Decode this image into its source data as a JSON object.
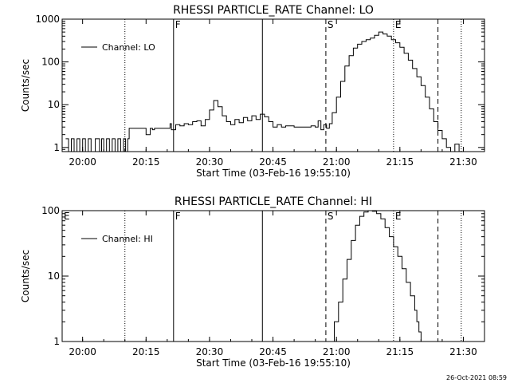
{
  "footer": {
    "timestamp": "26-Oct-2021 08:59"
  },
  "chart_data": [
    {
      "type": "line",
      "title": "RHESSI PARTICLE_RATE Channel: LO",
      "xlabel": "Start Time (03-Feb-16 19:55:10)",
      "ylabel": "Counts/sec",
      "scale_y": "log",
      "xlim": [
        "19:55:10",
        "21:35:00"
      ],
      "ylim": [
        0.8,
        1000
      ],
      "xticks": [
        "20:00",
        "20:15",
        "20:30",
        "20:45",
        "21:00",
        "21:15",
        "21:30"
      ],
      "yticks": [
        "1",
        "10",
        "100",
        "1000"
      ],
      "legend": {
        "placement": "top-left",
        "entries": [
          "Channel: LO"
        ]
      },
      "markers": [
        {
          "time": "20:21:30",
          "style": "solid",
          "label": "F"
        },
        {
          "time": "20:42:30",
          "style": "solid",
          "label": ""
        },
        {
          "time": "20:57:30",
          "style": "dashed",
          "label": "S"
        },
        {
          "time": "21:24:00",
          "style": "dashed",
          "label": ""
        },
        {
          "time": "20:10:00",
          "style": "dotted",
          "label": ""
        },
        {
          "time": "21:13:30",
          "style": "dotted",
          "label": "E"
        },
        {
          "time": "21:29:30",
          "style": "dotted",
          "label": ""
        }
      ],
      "series": [
        {
          "name": "Channel: LO",
          "x": [
            "19:56:00",
            "19:56:40",
            "19:57:20",
            "19:58:00",
            "19:58:40",
            "19:59:20",
            "20:00:00",
            "20:00:40",
            "20:01:20",
            "20:02:00",
            "20:03:00",
            "20:04:00",
            "20:04:30",
            "20:05:00",
            "20:05:40",
            "20:06:20",
            "20:07:00",
            "20:07:40",
            "20:08:20",
            "20:09:00",
            "20:09:40",
            "20:10:10",
            "20:10:40",
            "20:11:00",
            "20:12:00",
            "20:14:00",
            "20:15:00",
            "20:16:00",
            "20:16:30",
            "20:17:00",
            "20:18:00",
            "20:20:00",
            "20:20:40",
            "20:21:00",
            "20:22:00",
            "20:23:00",
            "20:24:00",
            "20:25:00",
            "20:26:00",
            "20:27:00",
            "20:28:00",
            "20:29:00",
            "20:30:00",
            "20:31:00",
            "20:32:00",
            "20:33:00",
            "20:34:00",
            "20:35:00",
            "20:36:00",
            "20:37:00",
            "20:38:00",
            "20:39:00",
            "20:40:00",
            "20:41:00",
            "20:42:00",
            "20:43:00",
            "20:44:00",
            "20:45:00",
            "20:46:00",
            "20:47:00",
            "20:48:00",
            "20:50:00",
            "20:52:00",
            "20:54:00",
            "20:55:00",
            "20:55:40",
            "20:56:20",
            "20:57:00",
            "20:57:40",
            "20:58:20",
            "20:59:00",
            "21:00:00",
            "21:01:00",
            "21:02:00",
            "21:03:00",
            "21:04:00",
            "21:05:00",
            "21:06:00",
            "21:07:00",
            "21:08:00",
            "21:09:00",
            "21:10:00",
            "21:11:00",
            "21:12:00",
            "21:13:00",
            "21:14:00",
            "21:15:00",
            "21:16:00",
            "21:17:00",
            "21:18:00",
            "21:19:00",
            "21:20:00",
            "21:21:00",
            "21:22:00",
            "21:23:00",
            "21:24:00",
            "21:25:00",
            "21:26:00",
            "21:27:00",
            "21:28:00",
            "21:29:00"
          ],
          "y": [
            1.6,
            0.8,
            1.6,
            0.8,
            1.6,
            0.8,
            1.6,
            0.8,
            1.6,
            0.8,
            1.6,
            0.8,
            1.6,
            0.8,
            1.6,
            0.8,
            1.6,
            0.8,
            1.6,
            0.8,
            1.6,
            0.8,
            1.6,
            2.8,
            2.8,
            2.8,
            2.0,
            2.8,
            2.6,
            2.8,
            2.8,
            2.8,
            3.6,
            2.6,
            3.4,
            3.2,
            3.6,
            3.4,
            4.0,
            4.2,
            3.2,
            4.5,
            7.5,
            12.5,
            9.0,
            5.5,
            4.0,
            3.4,
            4.5,
            3.8,
            5.0,
            4.2,
            5.5,
            4.5,
            6.0,
            5.2,
            4.0,
            3.0,
            3.4,
            3.0,
            3.2,
            3.0,
            3.0,
            3.2,
            3.0,
            4.2,
            2.6,
            3.4,
            2.8,
            3.6,
            6.5,
            15,
            35,
            80,
            140,
            210,
            260,
            300,
            330,
            360,
            420,
            500,
            450,
            400,
            330,
            280,
            220,
            160,
            110,
            70,
            45,
            28,
            15,
            8,
            4,
            2.5,
            1.6,
            1.0,
            0.8,
            1.2,
            0.8
          ]
        }
      ]
    },
    {
      "type": "line",
      "title": "RHESSI PARTICLE_RATE Channel: HI",
      "xlabel": "Start Time (03-Feb-16 19:55:10)",
      "ylabel": "Counts/sec",
      "scale_y": "log",
      "xlim": [
        "19:55:10",
        "21:35:00"
      ],
      "ylim": [
        1,
        100
      ],
      "xticks": [
        "20:00",
        "20:15",
        "20:30",
        "20:45",
        "21:00",
        "21:15",
        "21:30"
      ],
      "yticks": [
        "1",
        "10",
        "100"
      ],
      "legend": {
        "placement": "top-left",
        "entries": [
          "Channel: HI"
        ]
      },
      "markers": [
        {
          "time": "19:55:10",
          "style": "none",
          "label": "E"
        },
        {
          "time": "20:21:30",
          "style": "solid",
          "label": "F"
        },
        {
          "time": "20:42:30",
          "style": "solid",
          "label": ""
        },
        {
          "time": "20:57:30",
          "style": "dashed",
          "label": "S"
        },
        {
          "time": "21:24:00",
          "style": "dashed",
          "label": ""
        },
        {
          "time": "20:10:00",
          "style": "dotted",
          "label": ""
        },
        {
          "time": "21:13:30",
          "style": "dotted",
          "label": "E"
        },
        {
          "time": "21:29:30",
          "style": "dotted",
          "label": ""
        }
      ],
      "series": [
        {
          "name": "Channel: HI",
          "x": [
            "20:58:30",
            "20:59:30",
            "21:00:30",
            "21:01:30",
            "21:02:30",
            "21:03:30",
            "21:04:30",
            "21:05:30",
            "21:06:30",
            "21:07:30",
            "21:08:30",
            "21:09:30",
            "21:10:30",
            "21:11:30",
            "21:12:30",
            "21:13:30",
            "21:14:30",
            "21:15:30",
            "21:16:30",
            "21:17:30",
            "21:18:30",
            "21:19:00",
            "21:19:30",
            "21:20:00"
          ],
          "y": [
            1.0,
            2.0,
            4.0,
            9.0,
            18,
            35,
            60,
            82,
            95,
            100,
            98,
            90,
            75,
            55,
            40,
            28,
            20,
            13,
            8,
            5,
            3,
            2,
            1.4,
            1.0
          ]
        }
      ]
    }
  ]
}
